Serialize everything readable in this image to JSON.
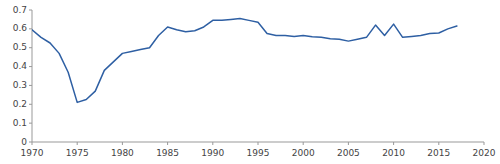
{
  "chart_data": {
    "type": "line",
    "x": [
      1970,
      1971,
      1972,
      1973,
      1974,
      1975,
      1976,
      1977,
      1978,
      1979,
      1980,
      1981,
      1982,
      1983,
      1984,
      1985,
      1986,
      1987,
      1988,
      1989,
      1990,
      1991,
      1992,
      1993,
      1994,
      1995,
      1996,
      1997,
      1998,
      1999,
      2000,
      2001,
      2002,
      2003,
      2004,
      2005,
      2006,
      2007,
      2008,
      2009,
      2010,
      2011,
      2012,
      2013,
      2014,
      2015,
      2016,
      2017
    ],
    "values": [
      0.595,
      0.555,
      0.525,
      0.47,
      0.37,
      0.21,
      0.225,
      0.27,
      0.38,
      0.425,
      0.47,
      0.48,
      0.49,
      0.5,
      0.565,
      0.61,
      0.595,
      0.585,
      0.59,
      0.61,
      0.645,
      0.645,
      0.65,
      0.655,
      0.645,
      0.635,
      0.575,
      0.565,
      0.565,
      0.56,
      0.565,
      0.558,
      0.555,
      0.548,
      0.545,
      0.535,
      0.545,
      0.555,
      0.62,
      0.565,
      0.625,
      0.555,
      0.56,
      0.565,
      0.575,
      0.578,
      0.6,
      0.615
    ],
    "color": "#2e5fa3",
    "xlim": [
      1970,
      2020
    ],
    "ylim": [
      0,
      0.7
    ],
    "xticks": [
      1970,
      1975,
      1980,
      1985,
      1990,
      1995,
      2000,
      2005,
      2010,
      2015,
      2020
    ],
    "yticks": [
      0,
      0.1,
      0.2,
      0.3,
      0.4,
      0.5,
      0.6,
      0.7
    ],
    "grid": false
  }
}
